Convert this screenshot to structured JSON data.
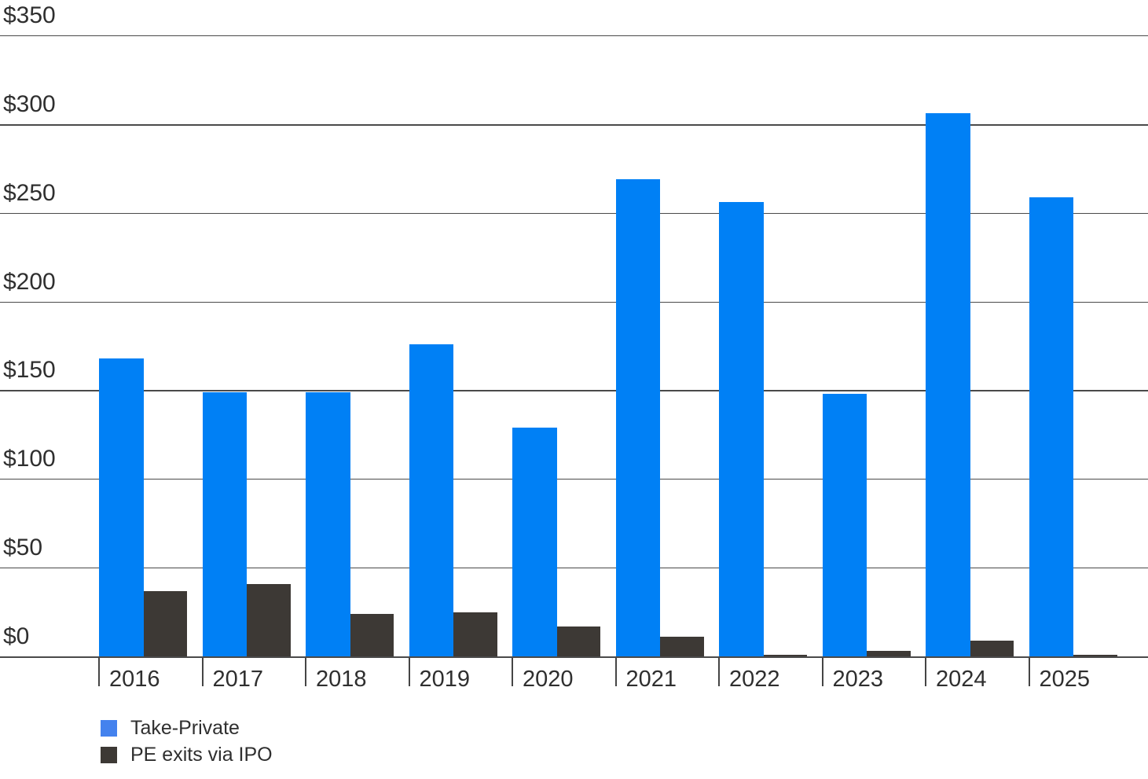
{
  "chart_data": {
    "type": "bar",
    "title": "",
    "xlabel": "",
    "ylabel": "",
    "categories": [
      "2016",
      "2017",
      "2018",
      "2019",
      "2020",
      "2021",
      "2022",
      "2023",
      "2024",
      "2025"
    ],
    "series": [
      {
        "name": "Take-Private",
        "color": "#0080F5",
        "values": [
          168,
          149,
          149,
          176,
          129,
          269,
          256,
          148,
          306,
          259
        ]
      },
      {
        "name": "PE exits via IPO",
        "color": "#3D3935",
        "values": [
          37,
          41,
          24,
          25,
          17,
          11,
          1,
          3,
          9,
          1
        ]
      }
    ],
    "y_axis": {
      "min": 0,
      "max": 350,
      "tick_step": 50,
      "ticks": [
        0,
        50,
        100,
        150,
        200,
        250,
        300,
        350
      ],
      "tick_labels": [
        "$0",
        "$50",
        "$100",
        "$150",
        "$200",
        "$250",
        "$300",
        "$350"
      ],
      "emphasized_gridlines": [
        0,
        150,
        300
      ]
    },
    "grid": true,
    "legend_position": "bottom-left",
    "legend": [
      {
        "label": "Take-Private",
        "swatch_color": "#4482EE"
      },
      {
        "label": "PE exits via IPO",
        "swatch_color": "#3D3935"
      }
    ]
  }
}
